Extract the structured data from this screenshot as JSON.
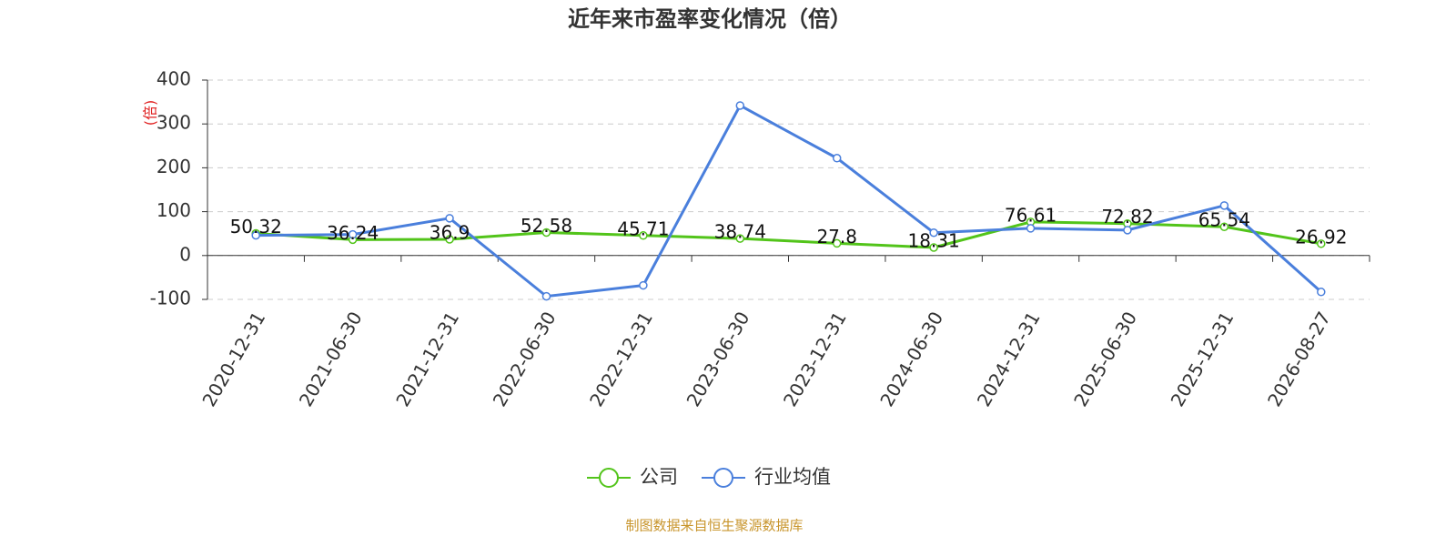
{
  "chart_data": {
    "type": "line",
    "title": "近年来市盈率变化情况（倍）",
    "y_label": "(倍)",
    "categories": [
      "2020-12-31",
      "2021-06-30",
      "2021-12-31",
      "2022-06-30",
      "2022-12-31",
      "2023-06-30",
      "2023-12-31",
      "2024-06-30",
      "2024-12-31",
      "2025-06-30",
      "2025-12-31",
      "2026-08-27"
    ],
    "series": [
      {
        "name": "公司",
        "color": "#52c41a",
        "values": [
          50.32,
          36.24,
          36.9,
          52.58,
          45.71,
          38.74,
          27.8,
          18.31,
          76.61,
          72.82,
          65.54,
          26.92
        ],
        "show_labels": true
      },
      {
        "name": "行业均值",
        "color": "#4a7fdc",
        "values": [
          46,
          48,
          85,
          -93,
          -68,
          342,
          222,
          52,
          62,
          58,
          114,
          -83
        ],
        "show_labels": false
      }
    ],
    "ylim": [
      -100,
      400
    ],
    "yticks": [
      -100,
      0,
      100,
      200,
      300,
      400
    ],
    "grid": true,
    "source": "制图数据来自恒生聚源数据库"
  }
}
